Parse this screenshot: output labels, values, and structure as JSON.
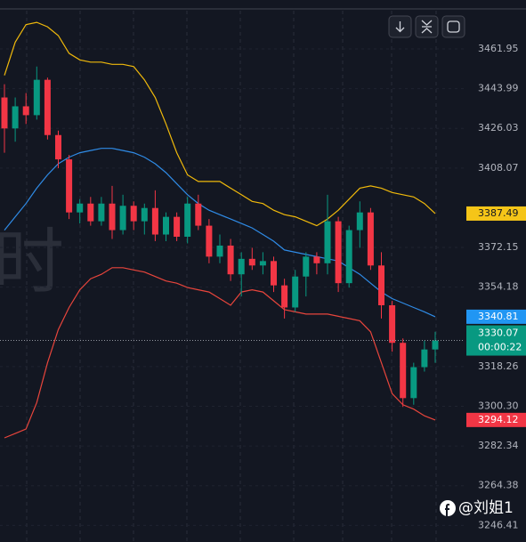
{
  "chart_data": {
    "type": "candlestick",
    "up_color": "#089981",
    "down_color": "#f23645",
    "open": [
      3440,
      3426,
      3436,
      3432,
      3448,
      3423,
      3412,
      3388,
      3392,
      3384,
      3392,
      3380,
      3391,
      3384,
      3390,
      3378,
      3386,
      3377,
      3392,
      3382,
      3368,
      3373,
      3360,
      3367,
      3364,
      3366,
      3355,
      3345,
      3359,
      3368,
      3365,
      3384,
      3356,
      3380,
      3388,
      3364,
      3346,
      3329,
      3304,
      3318,
      3326
    ],
    "high": [
      3446,
      3440,
      3442,
      3454,
      3449,
      3425,
      3414,
      3394,
      3395,
      3395,
      3400,
      3396,
      3393,
      3392,
      3398,
      3388,
      3388,
      3395,
      3396,
      3385,
      3378,
      3376,
      3370,
      3372,
      3370,
      3368,
      3358,
      3362,
      3370,
      3370,
      3396,
      3386,
      3382,
      3393,
      3390,
      3370,
      3348,
      3331,
      3320,
      3330,
      3334
    ],
    "low": [
      3415,
      3420,
      3428,
      3430,
      3421,
      3408,
      3385,
      3383,
      3382,
      3382,
      3376,
      3378,
      3380,
      3378,
      3375,
      3375,
      3375,
      3374,
      3380,
      3365,
      3365,
      3357,
      3350,
      3362,
      3360,
      3352,
      3340,
      3343,
      3350,
      3360,
      3360,
      3352,
      3354,
      3372,
      3362,
      3340,
      3325,
      3300,
      3301,
      3316,
      3320
    ],
    "close": [
      3426,
      3436,
      3432,
      3448,
      3423,
      3412,
      3388,
      3392,
      3384,
      3392,
      3380,
      3391,
      3384,
      3390,
      3378,
      3386,
      3377,
      3392,
      3382,
      3368,
      3373,
      3360,
      3367,
      3364,
      3366,
      3355,
      3345,
      3359,
      3368,
      3365,
      3384,
      3356,
      3380,
      3388,
      3364,
      3346,
      3329,
      3304,
      3318,
      3326,
      3330.07
    ],
    "overlays": [
      {
        "color": "#f0b90b",
        "label_color": "#f5c518",
        "values": [
          3450,
          3465,
          3473,
          3474,
          3472,
          3468,
          3460,
          3457,
          3456,
          3456,
          3455,
          3455,
          3454,
          3448,
          3440,
          3428,
          3415,
          3405,
          3402,
          3402,
          3402,
          3399,
          3396,
          3393,
          3392,
          3389,
          3387,
          3386,
          3384,
          3382,
          3385,
          3389,
          3394,
          3399,
          3400,
          3399,
          3397,
          3396,
          3395,
          3392,
          3387.49
        ]
      },
      {
        "color": "#2f8be6",
        "label_color": "#2196f3",
        "values": [
          3380,
          3386,
          3392,
          3399,
          3405,
          3410,
          3413,
          3415,
          3416,
          3417,
          3417,
          3416,
          3415,
          3413,
          3410,
          3406,
          3401,
          3396,
          3392,
          3389,
          3387,
          3385,
          3383,
          3381,
          3378,
          3375,
          3371,
          3370,
          3369,
          3368,
          3367,
          3366,
          3363,
          3360,
          3356,
          3352,
          3349,
          3347,
          3345,
          3343,
          3340.81
        ]
      },
      {
        "color": "#e8453c",
        "label_color": "#f23645",
        "values": [
          3286,
          3288,
          3290,
          3302,
          3320,
          3335,
          3345,
          3353,
          3358,
          3360,
          3363,
          3363,
          3362,
          3361,
          3359,
          3357,
          3356,
          3354,
          3353,
          3352,
          3349,
          3346,
          3352,
          3353,
          3352,
          3348,
          3344,
          3343,
          3342,
          3342,
          3342,
          3341,
          3340,
          3339,
          3334,
          3320,
          3306,
          3301,
          3299,
          3296,
          3294.12
        ]
      }
    ],
    "ylim": [
      3238.9,
      3484.1
    ],
    "yticks": [
      3461.95,
      3443.99,
      3426.03,
      3408.07,
      3372.15,
      3354.18,
      3318.26,
      {
        "value": 3300.3,
        "label": "3300.30"
      },
      3282.34,
      3264.38,
      3246.41
    ],
    "grid": true,
    "countdown": "00:00:22",
    "watermark": "时",
    "credit": "@刘姐1"
  }
}
